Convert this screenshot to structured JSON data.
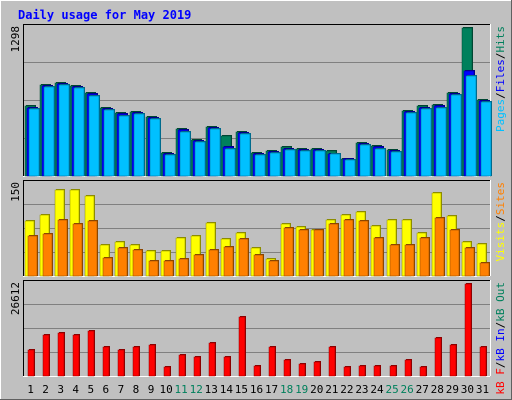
{
  "chart_data": [
    {
      "type": "bar",
      "title": "Daily usage for May 2019",
      "panel": "hits-files-pages",
      "ymax_label": "1298",
      "ylim": [
        0,
        1298
      ],
      "legend": [
        "Pages",
        "Files",
        "Hits"
      ],
      "categories": [
        "1",
        "2",
        "3",
        "4",
        "5",
        "6",
        "7",
        "8",
        "9",
        "10",
        "11",
        "12",
        "13",
        "14",
        "15",
        "16",
        "17",
        "18",
        "19",
        "20",
        "21",
        "22",
        "23",
        "24",
        "25",
        "26",
        "27",
        "28",
        "29",
        "30",
        "31"
      ],
      "series": [
        {
          "name": "Hits",
          "values": [
            610,
            800,
            820,
            790,
            730,
            600,
            550,
            560,
            520,
            200,
            410,
            320,
            430,
            350,
            390,
            200,
            220,
            250,
            240,
            240,
            220,
            150,
            290,
            260,
            230,
            570,
            610,
            620,
            730,
            1298,
            670
          ]
        },
        {
          "name": "Files",
          "values": [
            600,
            790,
            810,
            780,
            720,
            590,
            540,
            550,
            510,
            190,
            400,
            310,
            420,
            250,
            380,
            190,
            210,
            240,
            230,
            230,
            190,
            150,
            280,
            250,
            220,
            560,
            600,
            610,
            720,
            920,
            660
          ]
        },
        {
          "name": "Pages",
          "values": [
            590,
            780,
            800,
            770,
            700,
            580,
            530,
            540,
            500,
            180,
            390,
            300,
            410,
            240,
            370,
            180,
            200,
            230,
            220,
            220,
            190,
            140,
            270,
            240,
            210,
            550,
            590,
            600,
            710,
            880,
            650
          ]
        }
      ]
    },
    {
      "type": "bar",
      "panel": "visits-sites",
      "ymax_label": "150",
      "ylim": [
        0,
        150
      ],
      "legend": [
        "Visits",
        "Sites"
      ],
      "categories": [
        "1",
        "2",
        "3",
        "4",
        "5",
        "6",
        "7",
        "8",
        "9",
        "10",
        "11",
        "12",
        "13",
        "14",
        "15",
        "16",
        "17",
        "18",
        "19",
        "20",
        "21",
        "22",
        "23",
        "24",
        "25",
        "26",
        "27",
        "28",
        "29",
        "30",
        "31"
      ],
      "series": [
        {
          "name": "Visits",
          "values": [
            90,
            100,
            140,
            140,
            130,
            50,
            55,
            50,
            40,
            40,
            62,
            65,
            87,
            60,
            70,
            45,
            27,
            85,
            80,
            75,
            92,
            100,
            104,
            82,
            92,
            92,
            70,
            135,
            98,
            55,
            52
          ]
        },
        {
          "name": "Sites",
          "values": [
            65,
            68,
            92,
            85,
            90,
            30,
            45,
            43,
            25,
            25,
            28,
            35,
            42,
            47,
            60,
            35,
            25,
            78,
            75,
            75,
            85,
            92,
            90,
            62,
            50,
            50,
            62,
            95,
            75,
            45,
            22
          ]
        }
      ]
    },
    {
      "type": "bar",
      "panel": "kb",
      "ymax_label": "26612",
      "ylim": [
        0,
        26612
      ],
      "legend": [
        "kB F",
        "kB In",
        "kB Out"
      ],
      "categories": [
        "1",
        "2",
        "3",
        "4",
        "5",
        "6",
        "7",
        "8",
        "9",
        "10",
        "11",
        "12",
        "13",
        "14",
        "15",
        "16",
        "17",
        "18",
        "19",
        "20",
        "21",
        "22",
        "23",
        "24",
        "25",
        "26",
        "27",
        "28",
        "29",
        "30",
        "31"
      ],
      "series": [
        {
          "name": "kB F",
          "values": [
            7500,
            12000,
            12500,
            12000,
            13000,
            8500,
            7500,
            8500,
            9000,
            2500,
            6000,
            5500,
            9500,
            5500,
            17000,
            3000,
            8500,
            4500,
            3500,
            4000,
            8500,
            2500,
            3000,
            3000,
            3000,
            4500,
            2500,
            11000,
            9000,
            26612,
            8500
          ]
        }
      ]
    }
  ],
  "colors": {
    "background": "#c0c0c0",
    "panel": "#c0c0c0",
    "grid": "#808080",
    "title": "#0000ff",
    "hits": "#00805c",
    "files": "#0000ff",
    "pages": "#00c0ff",
    "visits": "#ffff00",
    "sites": "#ff8000",
    "kb": "#ff0000",
    "weekend_day": "#00805c",
    "weekday": "#000000"
  },
  "weekend_days": [
    "11",
    "12",
    "18",
    "19",
    "25",
    "26"
  ],
  "legend_separator": "/"
}
